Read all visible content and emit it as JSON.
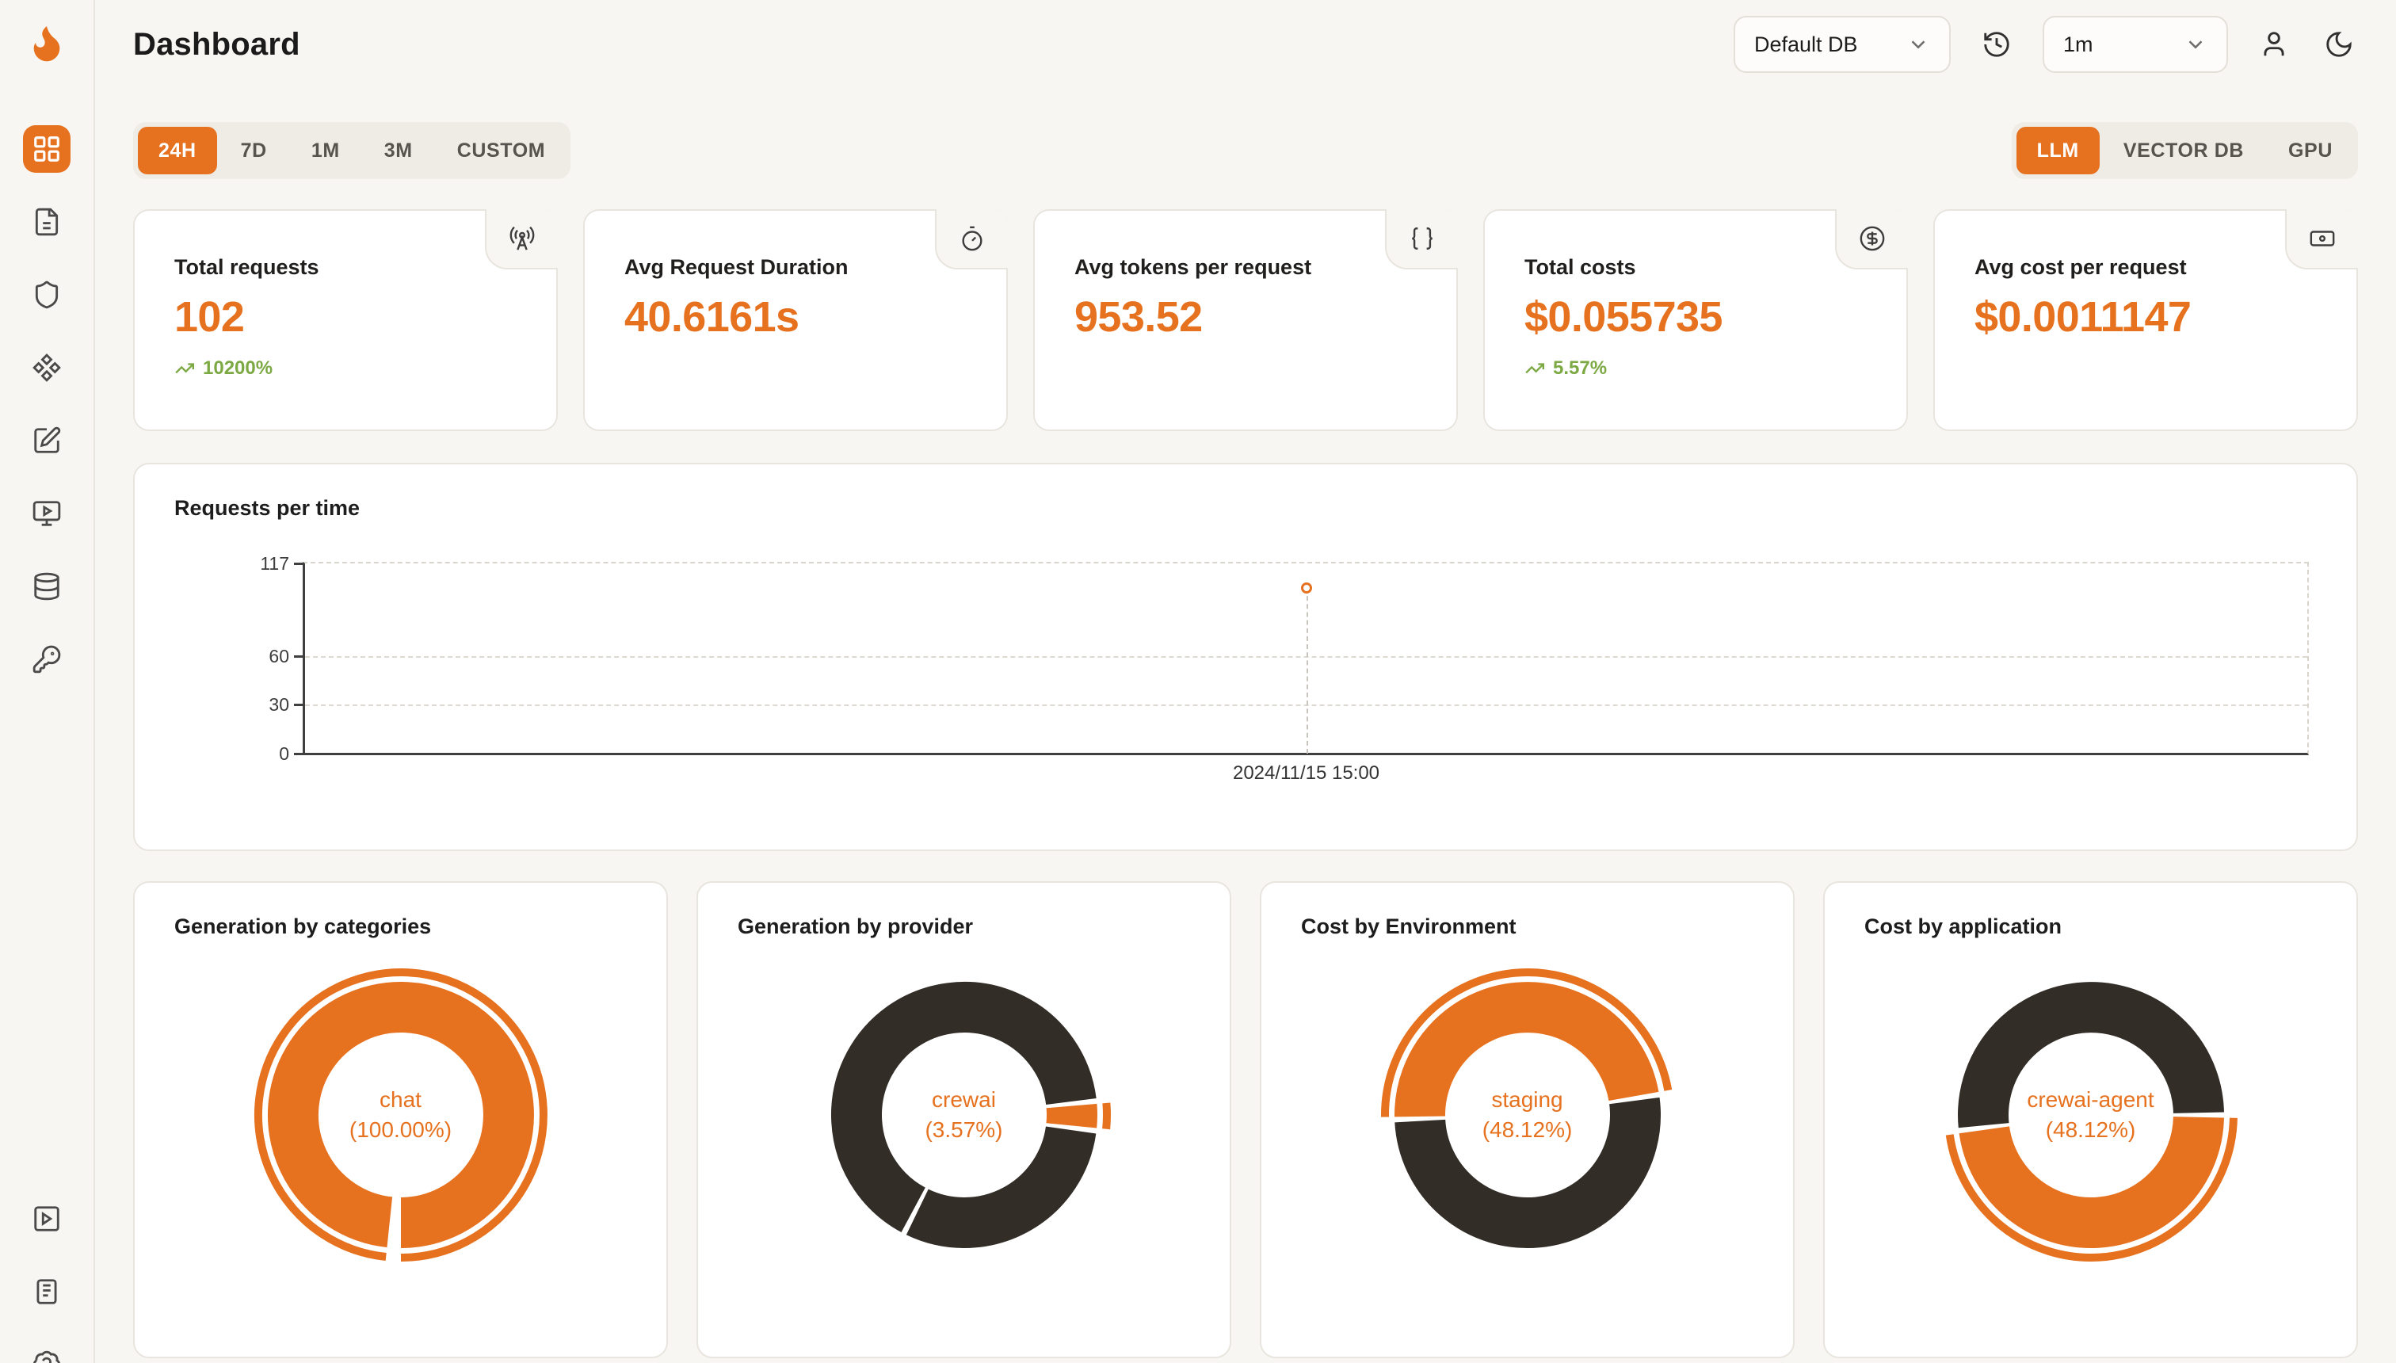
{
  "colors": {
    "accent": "#e6711e",
    "dark": "#332d28",
    "green": "#7ca943"
  },
  "header": {
    "title": "Dashboard",
    "db_select": "Default DB",
    "interval_select": "1m"
  },
  "time_tabs": {
    "items": [
      {
        "label": "24H",
        "active": true
      },
      {
        "label": "7D",
        "active": false
      },
      {
        "label": "1M",
        "active": false
      },
      {
        "label": "3M",
        "active": false
      },
      {
        "label": "CUSTOM",
        "active": false
      }
    ]
  },
  "scope_tabs": {
    "items": [
      {
        "label": "LLM",
        "active": true
      },
      {
        "label": "VECTOR DB",
        "active": false
      },
      {
        "label": "GPU",
        "active": false
      }
    ]
  },
  "stats": [
    {
      "label": "Total requests",
      "value": "102",
      "trend": "10200%",
      "icon": "radio-tower-icon"
    },
    {
      "label": "Avg Request Duration",
      "value": "40.6161s",
      "icon": "timer-icon"
    },
    {
      "label": "Avg tokens per request",
      "value": "953.52",
      "icon": "braces-icon"
    },
    {
      "label": "Total costs",
      "value": "$0.055735",
      "trend": "5.57%",
      "icon": "circle-dollar-icon"
    },
    {
      "label": "Avg cost per request",
      "value": "$0.0011147",
      "icon": "banknote-icon"
    }
  ],
  "chart_data": [
    {
      "type": "line",
      "title": "Requests per time",
      "ylabel": "",
      "xlabel": "",
      "ylim": [
        0,
        117
      ],
      "yticks": [
        0,
        30,
        60,
        117
      ],
      "xticks": [
        "2024/11/15 15:00"
      ],
      "grid": "dashed",
      "points": [
        {
          "x_label": "2024/11/15 15:00",
          "x_pct": 50,
          "y": 102
        }
      ]
    },
    {
      "type": "pie",
      "title": "Generation by categories",
      "center_label": "chat",
      "center_value": "(100.00%)",
      "start_angle": 183,
      "highlight_segment": 0,
      "segments": [
        {
          "label": "chat",
          "pct": 100,
          "color": "#e6711e"
        }
      ]
    },
    {
      "type": "pie",
      "title": "Generation by provider",
      "center_label": "crewai",
      "center_value": "(3.57%)",
      "start_angle": 84,
      "highlight_segment": 0,
      "segments": [
        {
          "label": "crewai",
          "pct": 3.57,
          "color": "#e6711e"
        },
        {
          "label": "",
          "pct": 30.6,
          "color": "#332d28"
        },
        {
          "label": "",
          "pct": 65.83,
          "color": "#332d28"
        }
      ]
    },
    {
      "type": "pie",
      "title": "Cost by Environment",
      "center_label": "staging",
      "center_value": "(48.12%)",
      "start_angle": 268,
      "highlight_segment": 0,
      "segments": [
        {
          "label": "staging",
          "pct": 48.12,
          "color": "#e6711e"
        },
        {
          "label": "",
          "pct": 51.88,
          "color": "#332d28"
        }
      ]
    },
    {
      "type": "pie",
      "title": "Cost by application",
      "center_label": "crewai-agent",
      "center_value": "(48.12%)",
      "start_angle": 90,
      "highlight_segment": 0,
      "segments": [
        {
          "label": "crewai-agent",
          "pct": 48.12,
          "color": "#e6711e"
        },
        {
          "label": "",
          "pct": 51.88,
          "color": "#332d28"
        }
      ]
    }
  ]
}
